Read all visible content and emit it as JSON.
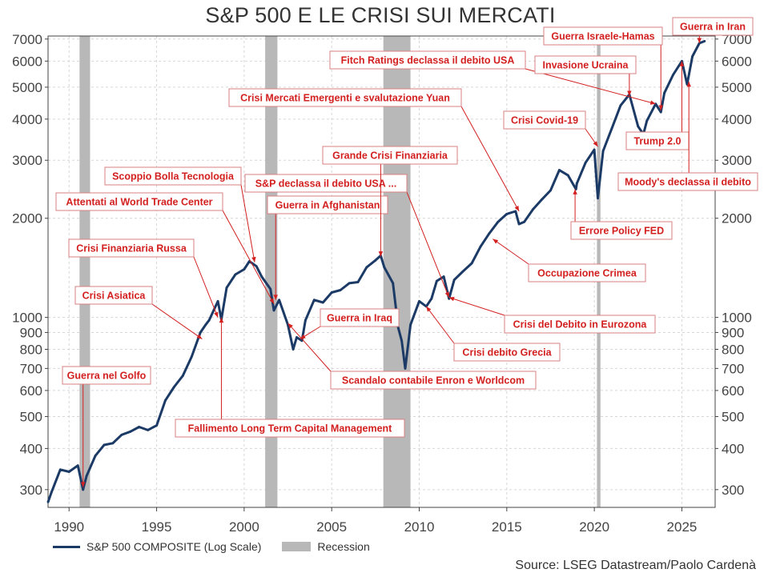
{
  "title": "S&P 500 E LE CRISI SUI MERCATI",
  "source": "Source: LSEG Datastream/Paolo Cardenà",
  "legend": {
    "series_label": "S&P 500 COMPOSITE (Log Scale)",
    "recession_label": "Recession"
  },
  "colors": {
    "series": "#1b3a66",
    "recession": "#b8b8b8",
    "annotation": "#d32020"
  },
  "chart_data": {
    "type": "line",
    "title": "S&P 500 E LE CRISI SUI MERCATI",
    "y_scale": "log",
    "ylim": [
      265,
      7150
    ],
    "xlim": [
      1988.8,
      2026.9
    ],
    "y_ticks": [
      300,
      400,
      500,
      600,
      700,
      800,
      900,
      1000,
      2000,
      3000,
      4000,
      5000,
      6000,
      7000
    ],
    "y_tick_labels": [
      "300",
      "400",
      "500",
      "600",
      "700",
      "800",
      "900",
      "1000",
      "2000",
      "3000",
      "4000",
      "5000",
      "6000",
      "7000"
    ],
    "x_ticks": [
      1990,
      1995,
      2000,
      2005,
      2010,
      2015,
      2020,
      2025
    ],
    "x_tick_labels": [
      "1990",
      "1995",
      "2000",
      "2005",
      "2010",
      "2015",
      "2020",
      "2025"
    ],
    "recessions": [
      [
        1990.6,
        1991.2
      ],
      [
        2001.2,
        2001.9
      ],
      [
        2007.95,
        2009.5
      ],
      [
        2020.15,
        2020.35
      ]
    ],
    "series": [
      {
        "name": "S&P 500 COMPOSITE (Log Scale)",
        "x": [
          1988.8,
          1989.0,
          1989.5,
          1990.0,
          1990.5,
          1990.8,
          1991.0,
          1991.5,
          1992.0,
          1992.5,
          1993.0,
          1993.5,
          1994.0,
          1994.5,
          1995.0,
          1995.5,
          1996.0,
          1996.5,
          1997.0,
          1997.5,
          1997.8,
          1998.0,
          1998.5,
          1998.7,
          1999.0,
          1999.5,
          2000.0,
          2000.3,
          2000.7,
          2001.0,
          2001.5,
          2001.7,
          2002.0,
          2002.5,
          2002.8,
          2003.0,
          2003.3,
          2003.5,
          2004.0,
          2004.5,
          2005.0,
          2005.5,
          2006.0,
          2006.5,
          2007.0,
          2007.5,
          2007.8,
          2008.0,
          2008.5,
          2008.8,
          2009.0,
          2009.2,
          2009.5,
          2010.0,
          2010.4,
          2010.7,
          2011.0,
          2011.4,
          2011.7,
          2012.0,
          2012.5,
          2013.0,
          2013.5,
          2014.0,
          2014.5,
          2015.0,
          2015.5,
          2015.7,
          2016.0,
          2016.5,
          2017.0,
          2017.5,
          2018.0,
          2018.5,
          2018.95,
          2019.0,
          2019.5,
          2020.0,
          2020.2,
          2020.5,
          2021.0,
          2021.5,
          2022.0,
          2022.5,
          2022.8,
          2023.0,
          2023.5,
          2023.8,
          2024.0,
          2024.5,
          2025.0,
          2025.3,
          2025.6,
          2026.0,
          2026.3
        ],
        "y": [
          275,
          295,
          345,
          340,
          355,
          300,
          330,
          380,
          410,
          415,
          440,
          450,
          465,
          455,
          470,
          560,
          615,
          665,
          760,
          900,
          950,
          980,
          1120,
          985,
          1230,
          1350,
          1400,
          1480,
          1430,
          1330,
          1220,
          1050,
          1130,
          950,
          800,
          870,
          850,
          980,
          1130,
          1110,
          1190,
          1210,
          1270,
          1280,
          1420,
          1490,
          1540,
          1420,
          1270,
          930,
          850,
          700,
          950,
          1120,
          1080,
          1140,
          1290,
          1330,
          1140,
          1300,
          1380,
          1460,
          1640,
          1800,
          1950,
          2060,
          2100,
          1920,
          1950,
          2130,
          2280,
          2430,
          2800,
          2700,
          2450,
          2550,
          2950,
          3230,
          2300,
          3200,
          3750,
          4400,
          4750,
          3800,
          3600,
          3950,
          4450,
          4200,
          4800,
          5450,
          6000,
          5100,
          6200,
          6800,
          6900
        ]
      }
    ]
  },
  "annotations": [
    {
      "key": "golfo",
      "label": "Guerra nel Golfo"
    },
    {
      "key": "asiatica",
      "label": "Crisi Asiatica"
    },
    {
      "key": "russa",
      "label": "Crisi Finanziaria Russa"
    },
    {
      "key": "wtc",
      "label": "Attentati al World Trade Center"
    },
    {
      "key": "bolla",
      "label": "Scoppio Bolla Tecnologia"
    },
    {
      "key": "ltcm",
      "label": "Fallimento Long Term Capital Management"
    },
    {
      "key": "afghan",
      "label": "Guerra in Afghanistan"
    },
    {
      "key": "sp_usa",
      "label": "S&P declassa il debito USA ..."
    },
    {
      "key": "gfc",
      "label": "Grande Crisi Finanziaria"
    },
    {
      "key": "iraq",
      "label": "Guerra in Iraq"
    },
    {
      "key": "enron",
      "label": "Scandalo contabile Enron e Worldcom"
    },
    {
      "key": "emergenti",
      "label": "Crisi Mercati Emergenti e svalutazione Yuan"
    },
    {
      "key": "fitch",
      "label": "Fitch Ratings declassa il debito USA"
    },
    {
      "key": "covid",
      "label": "Crisi Covid-19"
    },
    {
      "key": "crimea",
      "label": "Occupazione Crimea"
    },
    {
      "key": "eurozona",
      "label": "Crisi del Debito in Eurozona"
    },
    {
      "key": "grecia",
      "label": "Crisi debito Grecia"
    },
    {
      "key": "fed",
      "label": "Errore Policy FED"
    },
    {
      "key": "ucraina",
      "label": "Invasione Ucraina"
    },
    {
      "key": "hamas",
      "label": "Guerra Israele-Hamas"
    },
    {
      "key": "iran",
      "label": "Guerra in Iran"
    },
    {
      "key": "trump",
      "label": "Trump 2.0"
    },
    {
      "key": "moodys",
      "label": "Moody's declassa il debito"
    }
  ]
}
